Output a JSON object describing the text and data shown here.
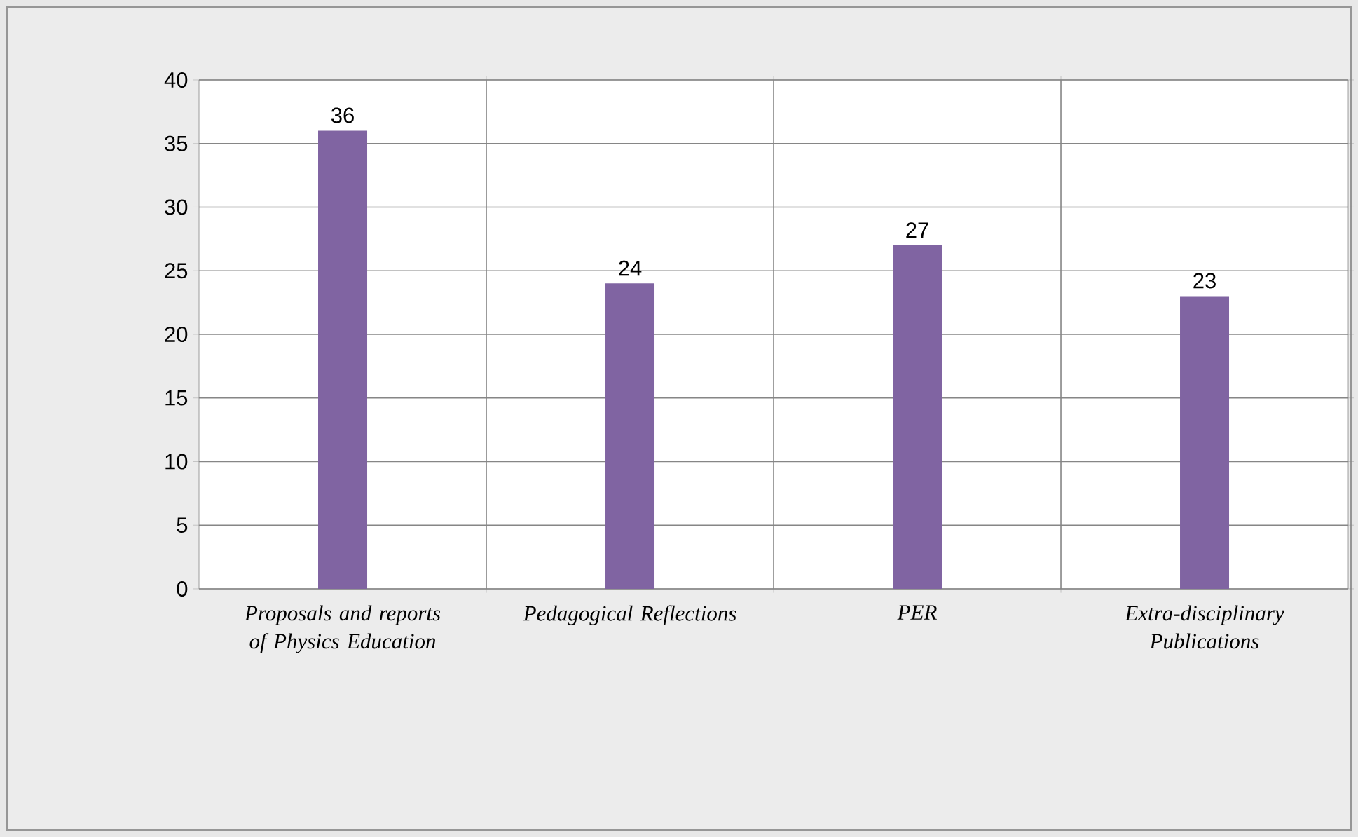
{
  "chart_data": {
    "type": "bar",
    "categories": [
      "Proposals and reports of Physics Education",
      "Pedagogical Reflections",
      "PER",
      "Extra-disciplinary Publications"
    ],
    "values": [
      36,
      24,
      27,
      23
    ],
    "color": "#8064a2",
    "ylim": [
      0,
      40
    ],
    "yticks": [
      0,
      5,
      10,
      15,
      20,
      25,
      30,
      35,
      40
    ],
    "grid": true,
    "data_labels": true
  }
}
